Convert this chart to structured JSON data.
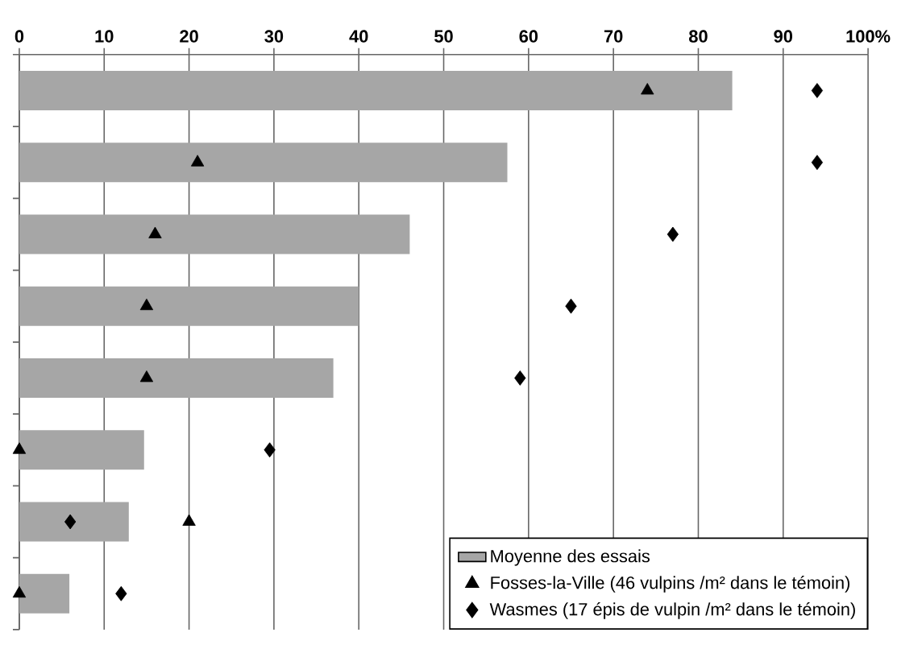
{
  "chart_data": {
    "type": "bar",
    "orientation": "horizontal",
    "categories": [
      null,
      null,
      null,
      null,
      null,
      null,
      null,
      null
    ],
    "series": [
      {
        "name": "Moyenne des essais",
        "color": "#a6a6a6",
        "values": [
          84,
          57.5,
          46,
          40,
          37,
          14.7,
          12.9,
          5.9
        ]
      },
      {
        "name": "Fosses-la-Ville (46 vulpins /m² dans le témoin)",
        "type": "scatter",
        "marker": "triangle",
        "color": "#000000",
        "values": [
          74,
          21,
          16,
          15,
          15,
          0,
          20,
          0
        ]
      },
      {
        "name": "Wasmes (17 épis de vulpin /m² dans le témoin)",
        "type": "scatter",
        "marker": "diamond",
        "color": "#000000",
        "values": [
          94,
          94,
          77,
          65,
          59,
          29.5,
          6,
          12
        ]
      }
    ],
    "xlim": [
      0,
      100
    ],
    "xticks": [
      0,
      10,
      20,
      30,
      40,
      50,
      60,
      70,
      80,
      90,
      {
        "value": 100,
        "label": "100%"
      }
    ],
    "grid": "x",
    "legend": "bottom right",
    "tick_labels": "x"
  }
}
